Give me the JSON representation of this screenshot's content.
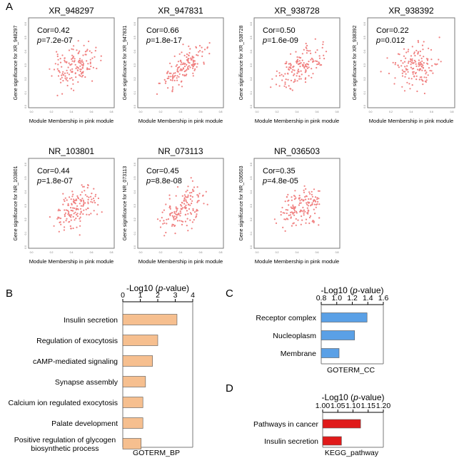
{
  "panel_labels": {
    "A": "A",
    "B": "B",
    "C": "C",
    "D": "D"
  },
  "colors": {
    "scatter_point": "#f08080",
    "bar_bp": "#f6bf8f",
    "bar_cc": "#5aa0e6",
    "bar_kegg": "#e01a1a",
    "frame": "#7a7a7a"
  },
  "chart_data": [
    {
      "type": "scatter",
      "id": "xr948297",
      "title": "XR_948297",
      "xlabel": "Module Membership in pink module",
      "ylabel": "Gene significance for XR_948297",
      "cor_text": "Cor=0.42",
      "p_prefix": "p",
      "p_value": "=7.2e-07",
      "cor": 0.42,
      "seed": 11,
      "xlim": [
        0,
        1
      ],
      "ylim": [
        0,
        1
      ],
      "x_ticks": [
        "0.0",
        "0.2",
        "0.4",
        "0.6",
        "0.8"
      ],
      "y_ticks": [
        "0.0",
        "0.1",
        "0.2",
        "0.3",
        "0.4",
        "0.5",
        "0.6"
      ]
    },
    {
      "type": "scatter",
      "id": "xr947831",
      "title": "XR_947831",
      "xlabel": "Module Membership in pink module",
      "ylabel": "Gene significance for XR_947831",
      "cor_text": "Cor=0.66",
      "p_prefix": "p",
      "p_value": "=1.8e-17",
      "cor": 0.66,
      "seed": 23,
      "xlim": [
        0,
        1
      ],
      "ylim": [
        0,
        1
      ],
      "x_ticks": [
        "0.0",
        "0.2",
        "0.4",
        "0.6",
        "0.8"
      ],
      "y_ticks": [
        "0.0",
        "0.1",
        "0.2",
        "0.3",
        "0.4",
        "0.5",
        "0.6"
      ]
    },
    {
      "type": "scatter",
      "id": "xr938728",
      "title": "XR_938728",
      "xlabel": "Module Membership in pink module",
      "ylabel": "Gene significance for XR_938728",
      "cor_text": "Cor=0.50",
      "p_prefix": "p",
      "p_value": "=1.6e-09",
      "cor": 0.5,
      "seed": 37,
      "xlim": [
        0,
        1
      ],
      "ylim": [
        0,
        1
      ],
      "x_ticks": [
        "0.0",
        "0.2",
        "0.4",
        "0.6",
        "0.8"
      ],
      "y_ticks": [
        "0.0",
        "0.1",
        "0.2",
        "0.3",
        "0.4",
        "0.5",
        "0.6"
      ]
    },
    {
      "type": "scatter",
      "id": "xr938392",
      "title": "XR_938392",
      "xlabel": "Module Membership in pink module",
      "ylabel": "Gene significance for XR_938392",
      "cor_text": "Cor=0.22",
      "p_prefix": "p",
      "p_value": "=0.012",
      "cor": 0.22,
      "seed": 41,
      "xlim": [
        0,
        1
      ],
      "ylim": [
        0,
        1
      ],
      "x_ticks": [
        "0.0",
        "0.2",
        "0.4",
        "0.6",
        "0.8"
      ],
      "y_ticks": [
        "0.0",
        "0.1",
        "0.2",
        "0.3",
        "0.4",
        "0.5",
        "0.6"
      ]
    },
    {
      "type": "scatter",
      "id": "nr103801",
      "title": "NR_103801",
      "xlabel": "Module Membership in pink module",
      "ylabel": "Gene significance for NR_103801",
      "cor_text": "Cor=0.44",
      "p_prefix": "p",
      "p_value": "=1.8e-07",
      "cor": 0.44,
      "seed": 53,
      "xlim": [
        0,
        1
      ],
      "ylim": [
        0,
        1
      ],
      "x_ticks": [
        "0.0",
        "0.2",
        "0.4",
        "0.6",
        "0.8"
      ],
      "y_ticks": [
        "0.0",
        "0.1",
        "0.2",
        "0.3",
        "0.4",
        "0.5",
        "0.6"
      ]
    },
    {
      "type": "scatter",
      "id": "nr073113",
      "title": "NR_073113",
      "xlabel": "Module Membership in pink module",
      "ylabel": "Gene significance for NR_073113",
      "cor_text": "Cor=0.45",
      "p_prefix": "p",
      "p_value": "=8.8e-08",
      "cor": 0.45,
      "seed": 67,
      "xlim": [
        0,
        1
      ],
      "ylim": [
        0,
        1
      ],
      "x_ticks": [
        "0.0",
        "0.2",
        "0.4",
        "0.6",
        "0.8"
      ],
      "y_ticks": [
        "0.0",
        "0.1",
        "0.2",
        "0.3",
        "0.4",
        "0.5",
        "0.6"
      ]
    },
    {
      "type": "scatter",
      "id": "nr036503",
      "title": "NR_036503",
      "xlabel": "Module Membership in pink module",
      "ylabel": "Gene significance for NR_036503",
      "cor_text": "Cor=0.35",
      "p_prefix": "p",
      "p_value": "=4.8e-05",
      "cor": 0.35,
      "seed": 79,
      "xlim": [
        0,
        1
      ],
      "ylim": [
        0,
        1
      ],
      "x_ticks": [
        "0.0",
        "0.2",
        "0.4",
        "0.6",
        "0.8"
      ],
      "y_ticks": [
        "0.0",
        "0.1",
        "0.2",
        "0.3",
        "0.4",
        "0.5",
        "0.6"
      ]
    },
    {
      "type": "bar",
      "id": "goterm_bp",
      "title_prefix": "-Log10 (",
      "title_p": "p",
      "title_suffix": "-value)",
      "xlabel": "GOTERM_BP",
      "xlim": [
        0,
        4
      ],
      "ticks": [
        0,
        1,
        2,
        3,
        4
      ],
      "tick_labels": [
        "0",
        "1",
        "2",
        "3",
        "4"
      ],
      "categories": [
        [
          "Insulin secretion"
        ],
        [
          "Regulation of exocytosis"
        ],
        [
          "cAMP-mediated signaling"
        ],
        [
          "Synapse assembly"
        ],
        [
          "Calcium ion regulated exocytosis"
        ],
        [
          "Palate development"
        ],
        [
          "Positive regulation of glycogen",
          "biosynthetic process"
        ]
      ],
      "values": [
        3.1,
        2.0,
        1.7,
        1.3,
        1.15,
        1.15,
        1.05
      ]
    },
    {
      "type": "bar",
      "id": "goterm_cc",
      "title_prefix": "-Log10 (",
      "title_p": "p",
      "title_suffix": "-value)",
      "xlabel": "GOTERM_CC",
      "xlim": [
        0.8,
        1.6
      ],
      "ticks": [
        0.8,
        1.0,
        1.2,
        1.4,
        1.6
      ],
      "tick_labels": [
        "0.8",
        "1.0",
        "1.2",
        "1.4",
        "1.6"
      ],
      "categories": [
        [
          "Receptor complex"
        ],
        [
          "Nucleoplasm"
        ],
        [
          "Membrane"
        ]
      ],
      "values": [
        1.39,
        1.23,
        1.03
      ]
    },
    {
      "type": "bar",
      "id": "kegg",
      "title_prefix": "-Log10 (",
      "title_p": "p",
      "title_suffix": "-value)",
      "xlabel": "KEGG_pathway",
      "xlim": [
        1.0,
        1.2
      ],
      "ticks": [
        1.0,
        1.05,
        1.1,
        1.15,
        1.2
      ],
      "tick_labels": [
        "1.00",
        "1.05",
        "1.10",
        "1.15",
        "1.20"
      ],
      "categories": [
        [
          "Pathways in cancer"
        ],
        [
          "Insulin secretion"
        ]
      ],
      "values": [
        1.125,
        1.062
      ]
    }
  ]
}
